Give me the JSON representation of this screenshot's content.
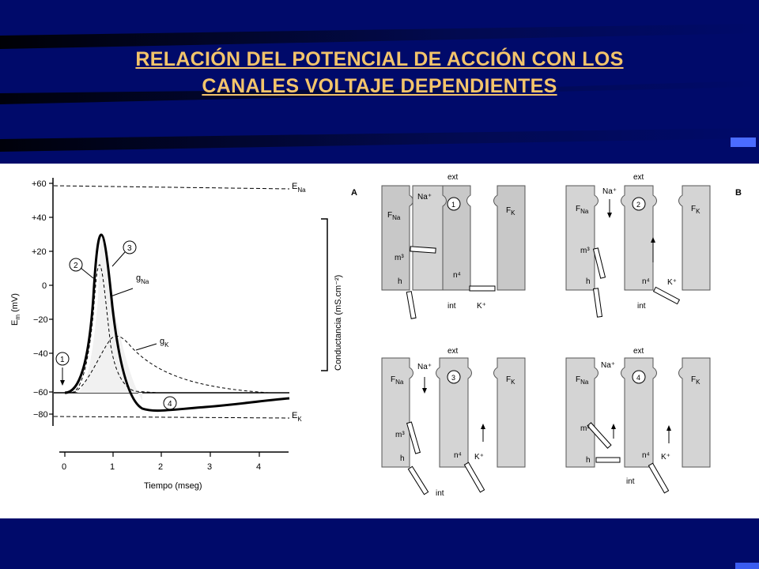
{
  "slide": {
    "title_line1": "RELACIÓN DEL POTENCIAL DE ACCIÓN CON LOS",
    "title_line2": "CANALES VOLTAJE DEPENDIENTES"
  },
  "graph": {
    "ylabel_main": "E",
    "ylabel_sub": "m",
    "ylabel_unit": " (mV)",
    "yticks": [
      "+60",
      "+40",
      "+20",
      "0",
      "−20",
      "−40",
      "−60",
      "−80"
    ],
    "xticks": [
      "0",
      "1",
      "2",
      "3",
      "4"
    ],
    "xlabel": "Tiempo (mseg)",
    "right_axis_label": "Conductancia (mS.cm⁻²)",
    "ENa": "E",
    "ENa_sub": "Na",
    "EK": "E",
    "EK_sub": "K",
    "gNa": "g",
    "gNa_sub": "Na",
    "gK": "g",
    "gK_sub": "K",
    "markers": [
      "1",
      "2",
      "3",
      "4"
    ]
  },
  "channels": {
    "panel_A": "A",
    "panel_B": "B",
    "ext": "ext",
    "int": "int",
    "na_ion": "Na⁺",
    "k_ion": "K⁺",
    "F": "F",
    "FNa_sub": "Na",
    "FK_sub": "K",
    "m3": "m³",
    "n4": "n⁴",
    "h": "h",
    "states": [
      "1",
      "2",
      "3",
      "4"
    ]
  },
  "colors": {
    "background": "#000a6a",
    "title": "#f3c46b",
    "membrane": "#c8c8c8"
  }
}
